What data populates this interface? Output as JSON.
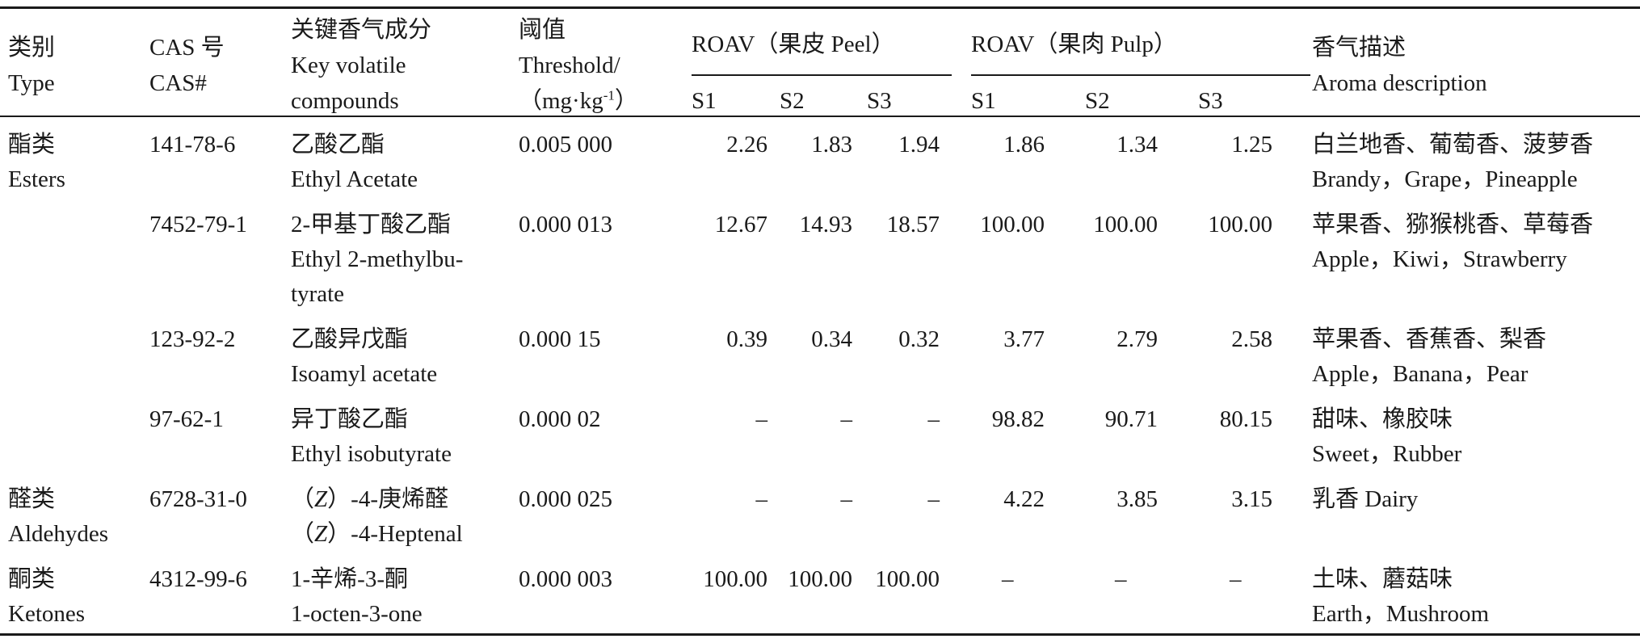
{
  "header": {
    "type": [
      "类别",
      "Type"
    ],
    "cas": [
      "CAS 号",
      "CAS#"
    ],
    "compound": [
      "关键香气成分",
      "Key volatile",
      "compounds"
    ],
    "threshold": [
      "阈值",
      "Threshold/",
      "（mg·kg",
      "-1",
      "）"
    ],
    "roav_peel": "ROAV（果皮 Peel）",
    "roav_pulp": "ROAV（果肉 Pulp）",
    "aroma": [
      "香气描述",
      "Aroma description"
    ],
    "samples": [
      "S1",
      "S2",
      "S3"
    ]
  },
  "rows": [
    {
      "type": [
        "酯类",
        "Esters"
      ],
      "cas": "141-78-6",
      "compound": [
        "乙酸乙酯",
        "Ethyl Acetate"
      ],
      "threshold": "0.005 000",
      "peel": [
        "2.26",
        "1.83",
        "1.94"
      ],
      "pulp": [
        "1.86",
        "1.34",
        "1.25"
      ],
      "aroma": [
        "白兰地香、葡萄香、菠萝香",
        "Brandy，Grape，Pineapple"
      ]
    },
    {
      "type": [
        "",
        ""
      ],
      "cas": "7452-79-1",
      "compound": [
        "2-甲基丁酸乙酯",
        "Ethyl 2-methylbu-",
        "tyrate"
      ],
      "threshold": "0.000 013",
      "peel": [
        "12.67",
        "14.93",
        "18.57"
      ],
      "pulp": [
        "100.00",
        "100.00",
        "100.00"
      ],
      "aroma": [
        "苹果香、猕猴桃香、草莓香",
        "Apple，Kiwi，Strawberry"
      ]
    },
    {
      "type": [
        "",
        ""
      ],
      "cas": "123-92-2",
      "compound": [
        "乙酸异戊酯",
        "Isoamyl acetate"
      ],
      "threshold": "0.000 15",
      "peel": [
        "0.39",
        "0.34",
        "0.32"
      ],
      "pulp": [
        "3.77",
        "2.79",
        "2.58"
      ],
      "aroma": [
        "苹果香、香蕉香、梨香",
        "Apple，Banana，Pear"
      ]
    },
    {
      "type": [
        "",
        ""
      ],
      "cas": "97-62-1",
      "compound": [
        "异丁酸乙酯",
        "Ethyl isobutyrate"
      ],
      "threshold": "0.000 02",
      "peel": [
        "–",
        "–",
        "–"
      ],
      "pulp": [
        "98.82",
        "90.71",
        "80.15"
      ],
      "aroma": [
        "甜味、橡胶味",
        "Sweet，Rubber"
      ]
    },
    {
      "type": [
        "醛类",
        "Aldehydes"
      ],
      "cas": "6728-31-0",
      "compound": [
        "（",
        "Z",
        "）-4-庚烯醛",
        "（",
        "Z",
        "）-4-Heptenal"
      ],
      "threshold": "0.000 025",
      "peel": [
        "–",
        "–",
        "–"
      ],
      "pulp": [
        "4.22",
        "3.85",
        "3.15"
      ],
      "aroma": [
        "乳香 Dairy",
        ""
      ]
    },
    {
      "type": [
        "酮类",
        "Ketones"
      ],
      "cas": "4312-99-6",
      "compound": [
        "1-辛烯-3-酮",
        "1-octen-3-one"
      ],
      "threshold": "0.000 003",
      "peel": [
        "100.00",
        "100.00",
        "100.00"
      ],
      "pulp": [
        "–",
        "–",
        "–"
      ],
      "aroma": [
        "土味、蘑菇味",
        "Earth，Mushroom"
      ]
    }
  ]
}
